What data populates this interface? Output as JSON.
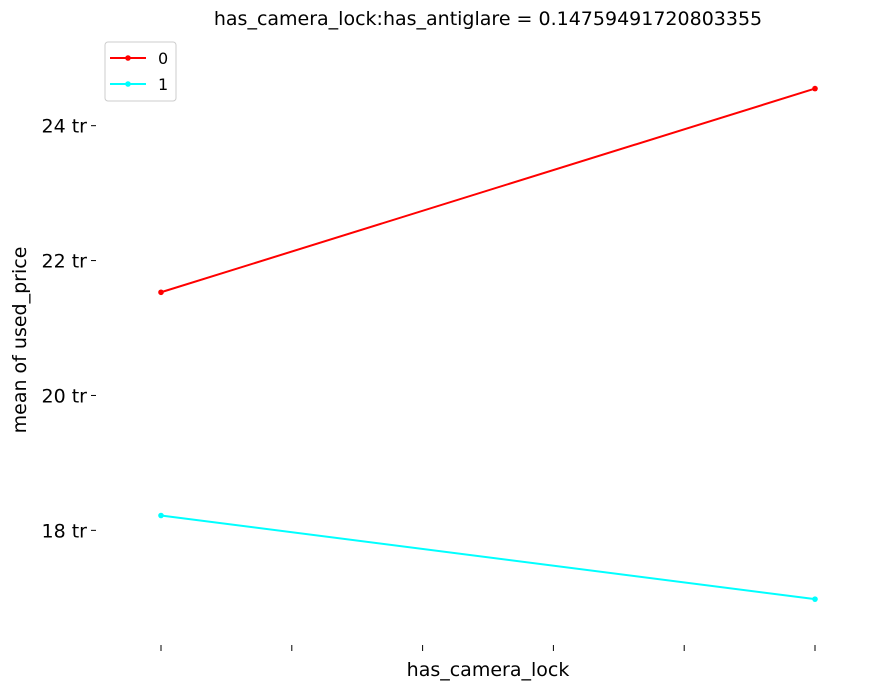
{
  "chart_data": {
    "type": "line",
    "title": "has_camera_lock:has_antiglare = 0.14759491720803355",
    "xlabel": "has_camera_lock",
    "ylabel": "mean of used_price",
    "x": [
      0,
      1
    ],
    "xlim": [
      0,
      1
    ],
    "x_ticks": [
      0,
      0.2,
      0.4,
      0.6,
      0.8,
      1
    ],
    "ylim": [
      16.3,
      25.3
    ],
    "y_ticks": [
      {
        "value": 18,
        "label": "18 tr"
      },
      {
        "value": 20,
        "label": "20 tr"
      },
      {
        "value": 22,
        "label": "22 tr"
      },
      {
        "value": 24,
        "label": "24 tr"
      }
    ],
    "series": [
      {
        "name": "0",
        "color": "#ff0000",
        "values": [
          21.53,
          24.55
        ]
      },
      {
        "name": "1",
        "color": "#00ffff",
        "values": [
          18.22,
          16.98
        ]
      }
    ],
    "legend": {
      "placement": "top-left"
    },
    "grid": false
  }
}
